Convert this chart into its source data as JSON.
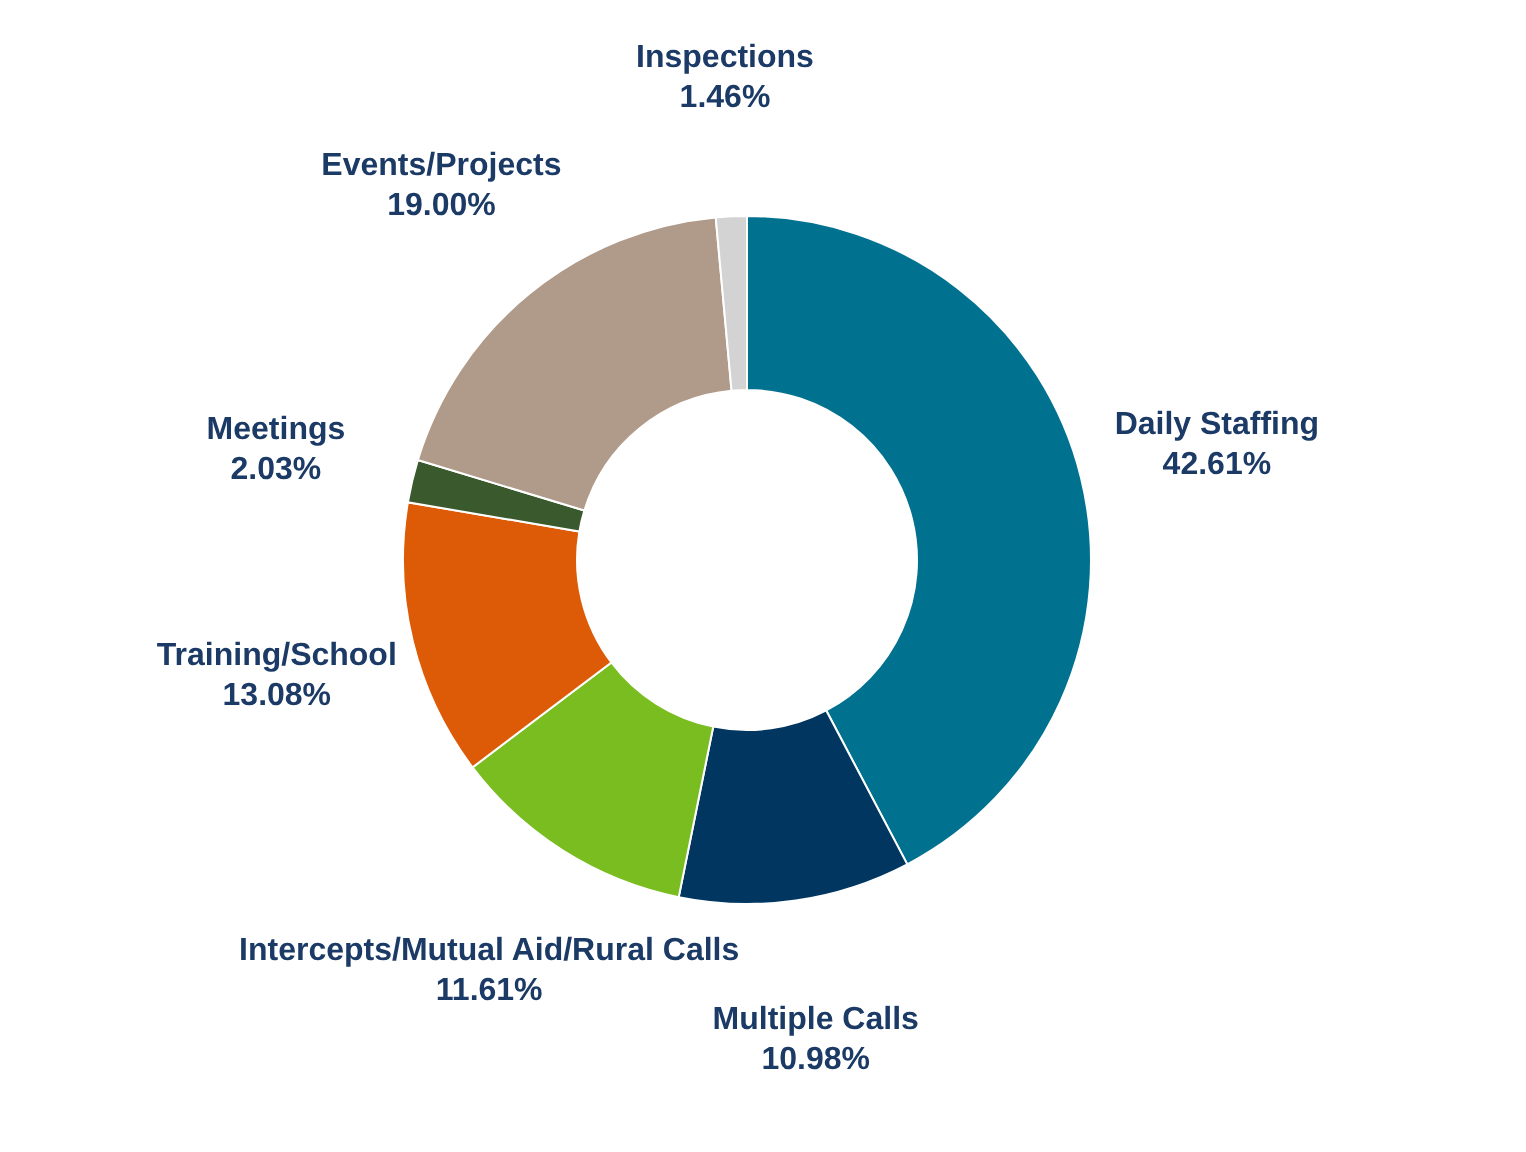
{
  "chart_data": {
    "type": "donut",
    "categories": [
      "Daily Staffing",
      "Multiple Calls",
      "Intercepts/Mutual Aid/Rural Calls",
      "Training/School",
      "Meetings",
      "Events/Projects",
      "Inspections"
    ],
    "values": [
      42.61,
      10.98,
      11.61,
      13.08,
      2.03,
      19.0,
      1.46
    ],
    "value_labels": [
      "42.61%",
      "10.98%",
      "11.61%",
      "13.08%",
      "2.03%",
      "19.00%",
      "1.46%"
    ],
    "colors": [
      "#00718f",
      "#003660",
      "#7abd21",
      "#dd5b06",
      "#3a5a2e",
      "#b09a89",
      "#d3d3d3"
    ]
  }
}
